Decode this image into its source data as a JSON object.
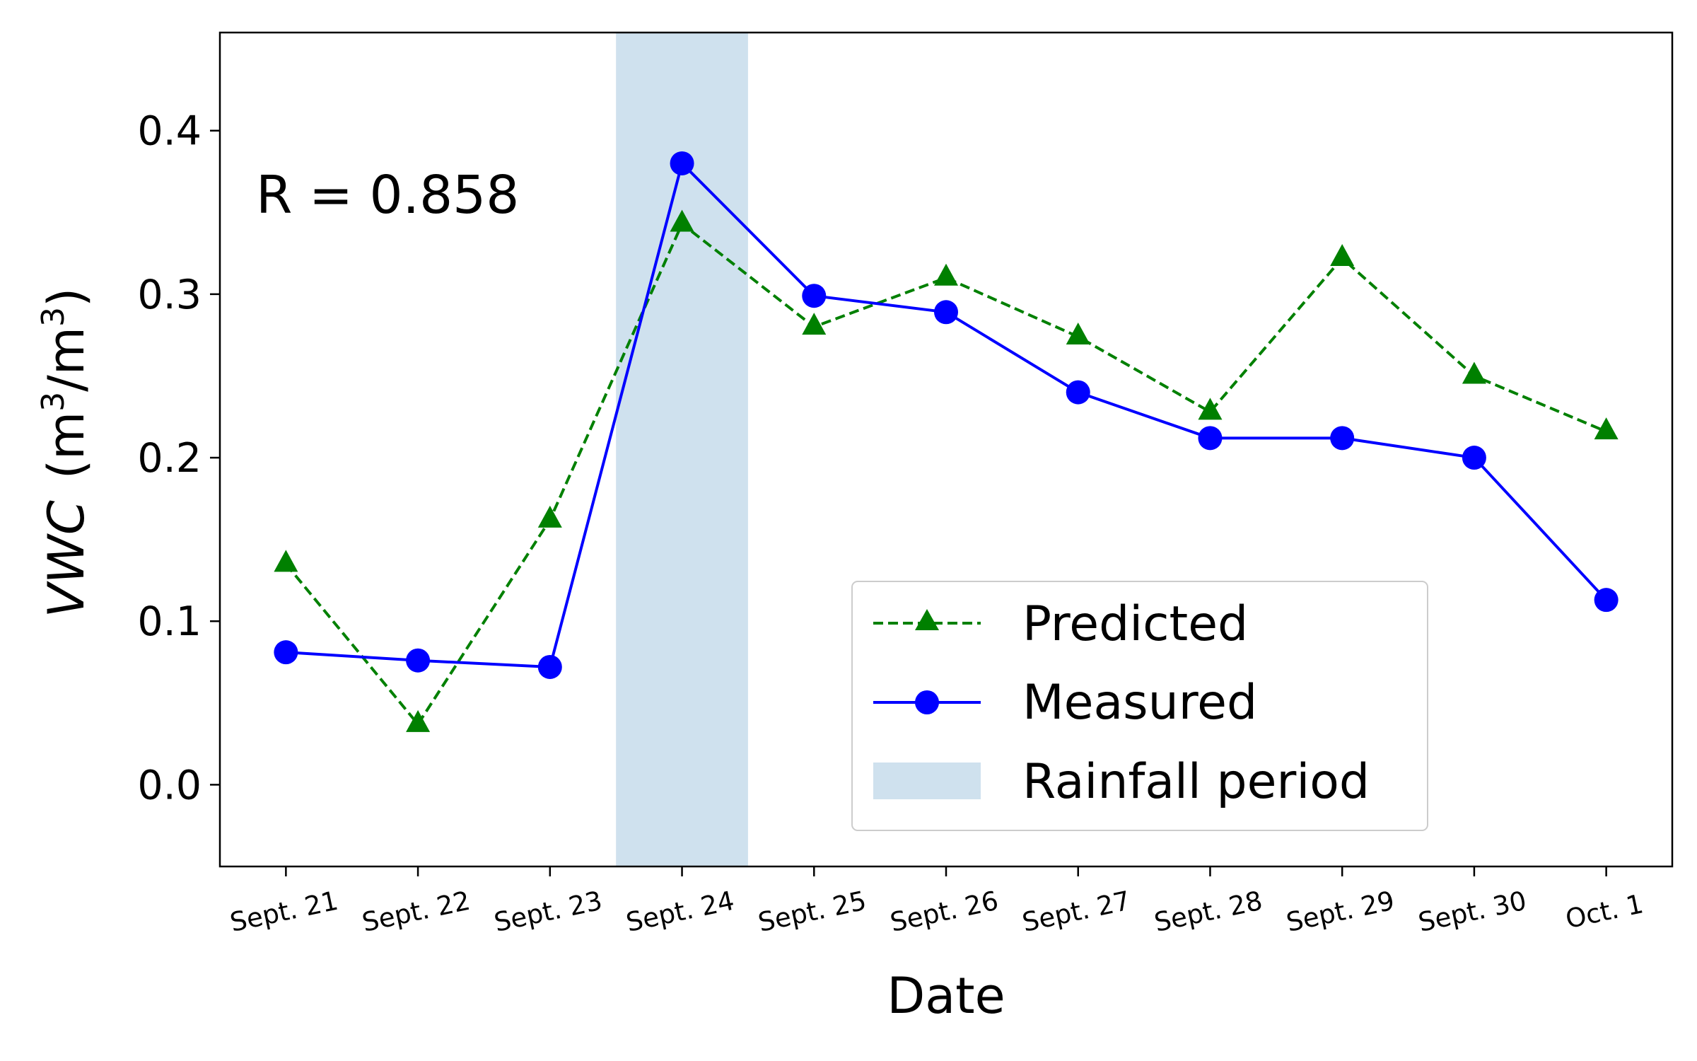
{
  "chart_data": {
    "type": "line",
    "title": "",
    "xlabel": "Date",
    "ylabel": {
      "variable": "VWC",
      "unit_open": "(m",
      "sup1": "3",
      "unit_mid": "/m",
      "sup2": "3",
      "unit_close": ")"
    },
    "annotation": "R = 0.858",
    "categories": [
      "Sept. 21",
      "Sept. 22",
      "Sept. 23",
      "Sept. 24",
      "Sept. 25",
      "Sept. 26",
      "Sept. 27",
      "Sept. 28",
      "Sept. 29",
      "Sept. 30",
      "Oct. 1"
    ],
    "series": [
      {
        "name": "Predicted",
        "color": "#008000",
        "line": "dashed",
        "marker": "triangle",
        "values": [
          0.135,
          0.037,
          0.162,
          0.343,
          0.28,
          0.31,
          0.274,
          0.228,
          0.322,
          0.25,
          0.216
        ]
      },
      {
        "name": "Measured",
        "color": "#0000ff",
        "line": "solid",
        "marker": "circle",
        "values": [
          0.081,
          0.076,
          0.072,
          0.38,
          0.299,
          0.289,
          0.24,
          0.212,
          0.212,
          0.2,
          0.113
        ]
      }
    ],
    "shaded_region": {
      "name": "Rainfall period",
      "color": "#cfe1ee",
      "x_from": 2.5,
      "x_to": 3.5
    },
    "ylim": [
      -0.05,
      0.46
    ],
    "xlim": [
      -0.5,
      10.5
    ],
    "yticks": [
      0.0,
      0.1,
      0.2,
      0.3,
      0.4
    ],
    "ytick_labels": [
      "0.0",
      "0.1",
      "0.2",
      "0.3",
      "0.4"
    ],
    "xtick_rotation": 12,
    "grid": false,
    "legend_position": "lower-right"
  }
}
